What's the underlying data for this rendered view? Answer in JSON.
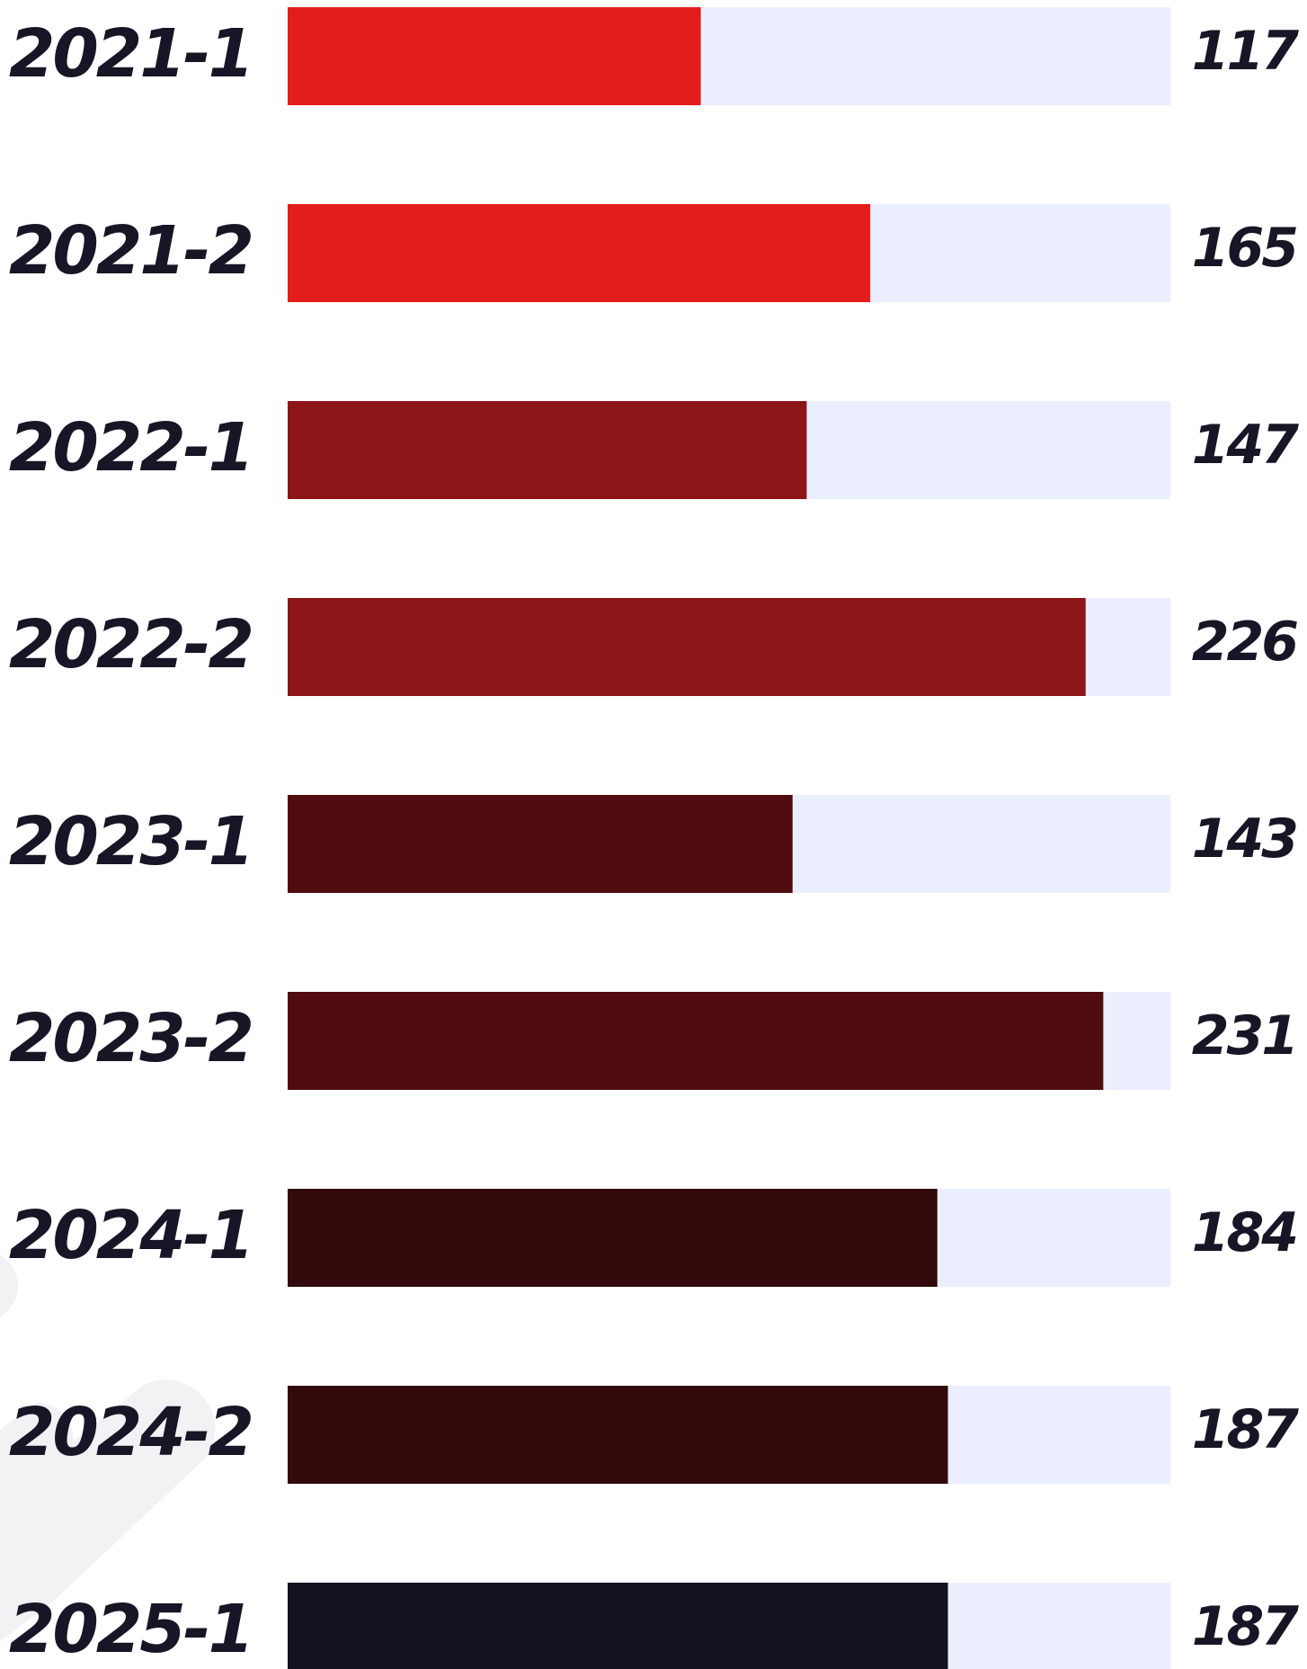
{
  "chart_data": {
    "type": "bar",
    "orientation": "horizontal",
    "categories": [
      "2021-1",
      "2021-2",
      "2022-1",
      "2022-2",
      "2023-1",
      "2023-2",
      "2024-1",
      "2024-2",
      "2025-1"
    ],
    "values": [
      117,
      165,
      147,
      226,
      143,
      231,
      184,
      187,
      187
    ],
    "colors": [
      "#e31c1c",
      "#e31c1c",
      "#8b1517",
      "#8b1517",
      "#510c0f",
      "#510c0f",
      "#330a0b",
      "#330a0b",
      "#11111f"
    ],
    "track_color": "#ebeffd",
    "xlim": [
      0,
      250
    ]
  }
}
